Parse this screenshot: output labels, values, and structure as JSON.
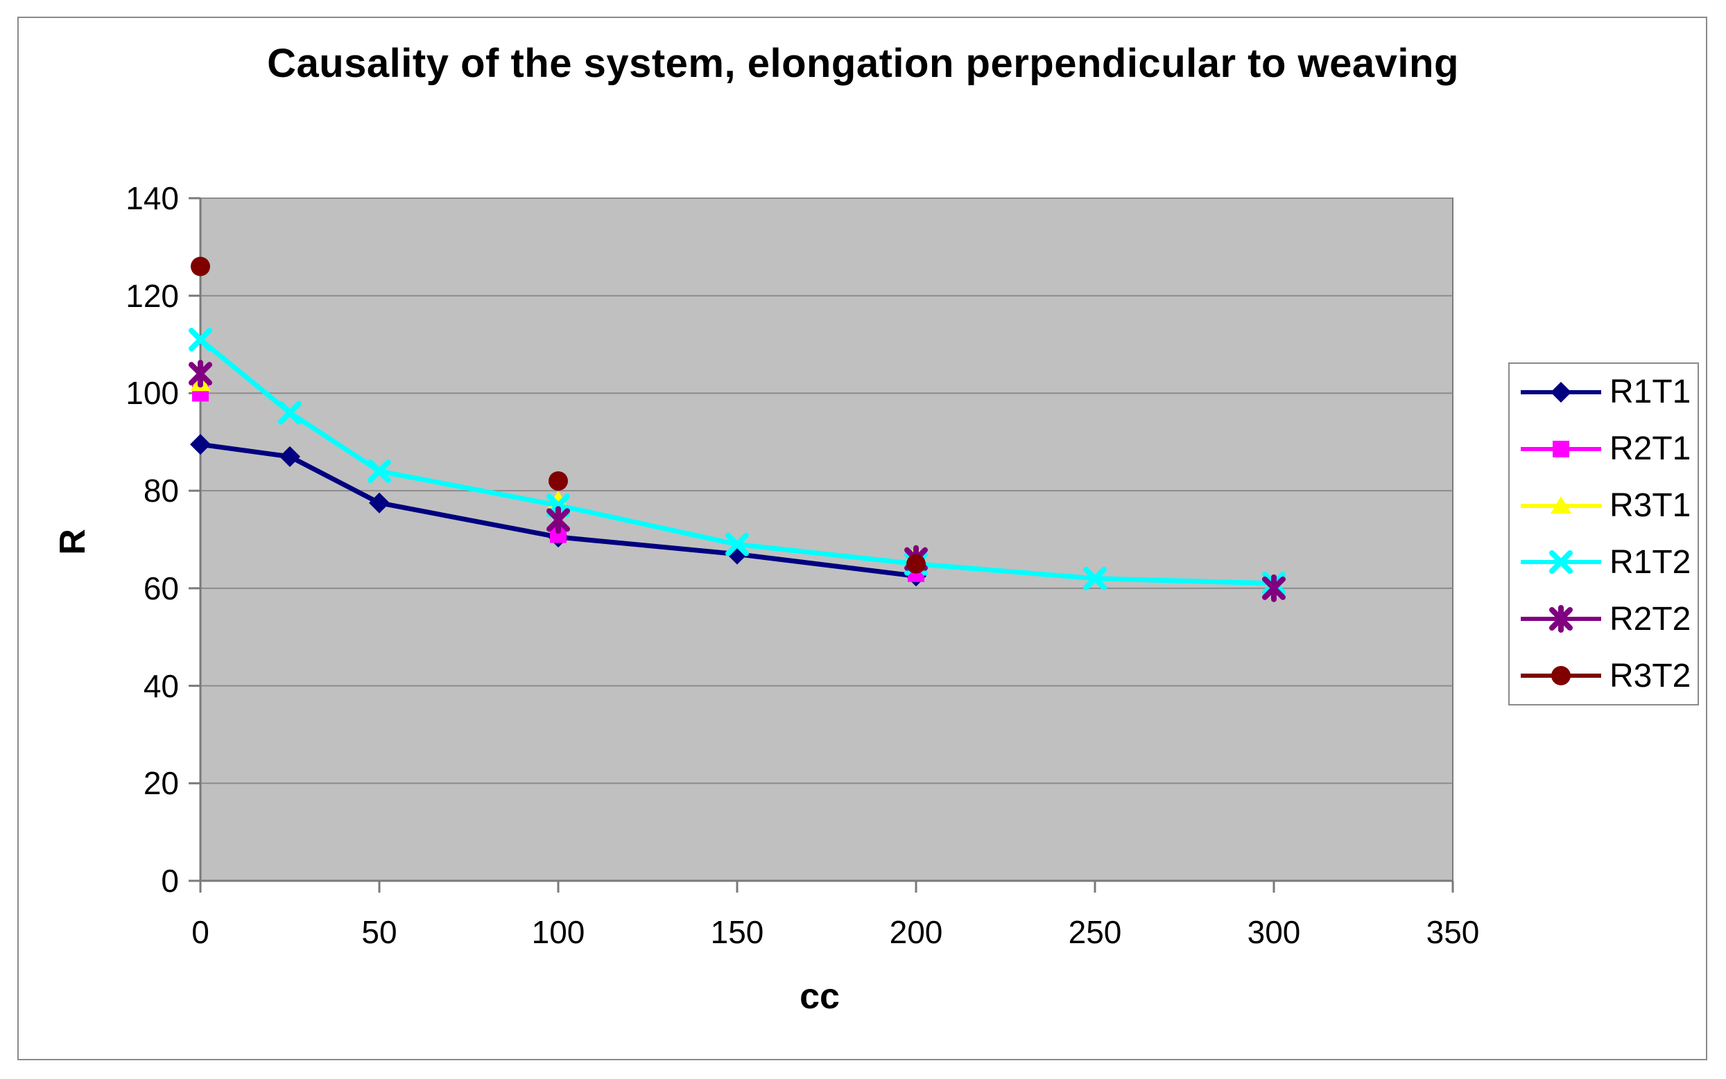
{
  "chart_data": {
    "type": "line",
    "title": "Causality of the system, elongation perpendicular to weaving",
    "xlabel": "cc",
    "ylabel": "R",
    "xlim": [
      0,
      350
    ],
    "ylim": [
      0,
      140
    ],
    "x_ticks": [
      0,
      50,
      100,
      150,
      200,
      250,
      300,
      350
    ],
    "y_ticks": [
      0,
      20,
      40,
      60,
      80,
      100,
      120,
      140
    ],
    "grid": "horizontal-only",
    "legend_position": "right",
    "plot_bg_color": "#c0c0c0",
    "gridline_color": "#8c8c8c",
    "axis_color": "#7a7a7a",
    "series": [
      {
        "name": "R1T1",
        "color": "#000080",
        "marker": "diamond",
        "line": true,
        "x": [
          0,
          25,
          50,
          100,
          150,
          200
        ],
        "y": [
          89.5,
          87,
          77.5,
          70.5,
          67,
          62.5
        ]
      },
      {
        "name": "R2T1",
        "color": "#ff00ff",
        "marker": "square",
        "line": false,
        "x": [
          0,
          100,
          200
        ],
        "y": [
          100,
          71,
          63
        ]
      },
      {
        "name": "R3T1",
        "color": "#ffff00",
        "marker": "triangle",
        "line": false,
        "x": [
          0,
          100,
          200
        ],
        "y": [
          102,
          78,
          67
        ]
      },
      {
        "name": "R1T2",
        "color": "#00ffff",
        "marker": "x",
        "line": true,
        "x": [
          0,
          25,
          50,
          100,
          150,
          200,
          250,
          300
        ],
        "y": [
          111,
          96,
          84,
          77,
          69,
          65,
          62,
          61
        ]
      },
      {
        "name": "R2T2",
        "color": "#800080",
        "marker": "asterisk",
        "line": false,
        "x": [
          0,
          100,
          200,
          300
        ],
        "y": [
          104,
          74,
          66,
          60
        ]
      },
      {
        "name": "R3T2",
        "color": "#800000",
        "marker": "circle",
        "line": false,
        "x": [
          0,
          100,
          200
        ],
        "y": [
          126,
          82,
          65
        ]
      }
    ]
  }
}
